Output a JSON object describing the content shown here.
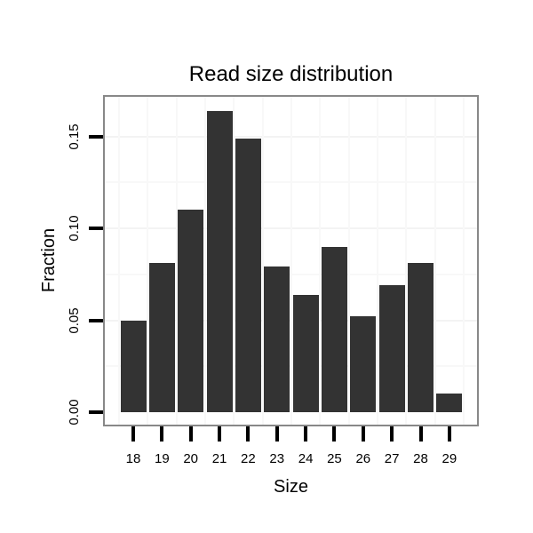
{
  "chart_data": {
    "type": "bar",
    "title": "Read size distribution",
    "xlabel": "Size",
    "ylabel": "Fraction",
    "categories": [
      "18",
      "19",
      "20",
      "21",
      "22",
      "23",
      "24",
      "25",
      "26",
      "27",
      "28",
      "29"
    ],
    "values": [
      0.05,
      0.081,
      0.11,
      0.164,
      0.149,
      0.079,
      0.064,
      0.09,
      0.052,
      0.069,
      0.081,
      0.01
    ],
    "ylim": [
      0,
      0.1725
    ],
    "yticks": [
      0,
      0.05,
      0.1,
      0.15
    ],
    "ytick_labels": [
      "0.00",
      "0.05",
      "0.10",
      "0.15"
    ],
    "grid": {
      "horizontal_major": [
        0.05,
        0.1,
        0.15
      ],
      "horizontal_minor": [
        0.025,
        0.075,
        0.125
      ],
      "vertical": "category-boundaries"
    },
    "legend": null,
    "colors": {
      "bar": "#333333",
      "panel_border": "#888888",
      "grid_major": "#f3f3f3",
      "grid_minor": "#f8f8f8",
      "tick": "#000000",
      "text": "#000000",
      "background": "#ffffff"
    }
  }
}
